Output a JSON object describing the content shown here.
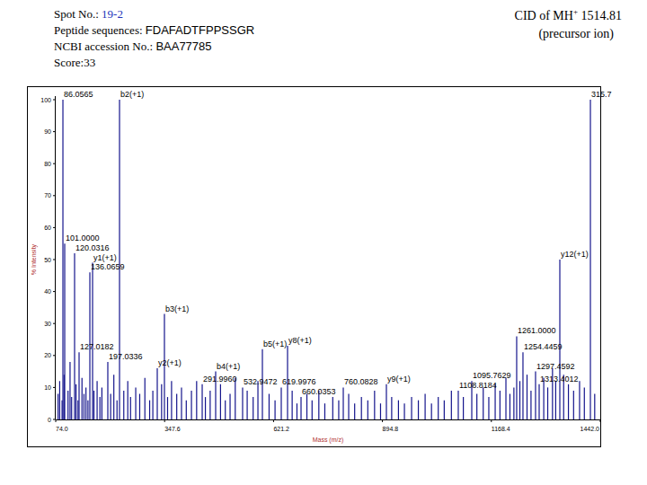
{
  "header": {
    "spot": {
      "label": "Spot No.:",
      "value": "19-2"
    },
    "peptide": {
      "label": "Peptide sequences:",
      "value": "FDAFADTFPPSSGR"
    },
    "accession": {
      "label": "NCBI accession No.:",
      "value": "BAA77785"
    },
    "score": "Score:33",
    "cid": {
      "prefix": "CID of MH",
      "charge": "+",
      "mass": "1514.81"
    },
    "precursor": "(precursor ion)"
  },
  "chart_data": {
    "type": "stem",
    "x_label": "Mass (m/z)",
    "y_label": "% Intensity",
    "color": "#14148c",
    "grid": false,
    "xlim": [
      74.0,
      1442.0
    ],
    "xticks": [
      {
        "value": 74.0,
        "label": "74.0"
      },
      347.6,
      621.2,
      894.8,
      1168.4,
      {
        "value": 1442.0,
        "label": "1442.0"
      }
    ],
    "ylim": [
      0,
      100
    ],
    "yticks": [
      0,
      10,
      20,
      30,
      40,
      50,
      60,
      70,
      80,
      90,
      100
    ],
    "x": [
      92.1,
      96.6,
      121.4,
      166.6,
      159.8,
      132.7,
      204.9,
      234.3,
      329.1,
      347.1,
      442.0,
      475.8,
      543.5,
      593.2,
      656.4,
      640.6,
      690.3,
      796.4,
      904.7,
      1085.3,
      1119.2,
      1232.0,
      1247.8,
      1279.4,
      1288.5,
      1340.4,
      1417.2,
      80,
      84,
      90,
      95,
      105,
      110,
      114,
      125,
      130,
      140,
      145,
      150,
      155,
      170,
      178,
      185,
      190,
      212,
      220,
      228,
      245,
      255,
      262,
      275,
      285,
      298,
      310,
      318,
      340,
      355,
      365,
      378,
      390,
      402,
      415,
      428,
      450,
      462,
      488,
      500,
      512,
      525,
      555,
      570,
      582,
      610,
      625,
      668,
      680,
      705,
      718,
      735,
      750,
      770,
      785,
      810,
      825,
      842,
      858,
      875,
      890,
      918,
      935,
      950,
      968,
      985,
      1002,
      1018,
      1035,
      1050,
      1068,
      1098,
      1132,
      1148,
      1162,
      1178,
      1190,
      1205,
      1215,
      1225,
      1240,
      1258,
      1268,
      1300,
      1310,
      1322,
      1330,
      1350,
      1362,
      1375,
      1390,
      1402,
      1428
    ],
    "values": [
      100,
      55,
      52,
      49,
      46,
      21,
      18,
      100,
      16,
      33,
      11,
      15,
      10,
      22,
      23,
      10,
      7,
      10,
      11,
      9,
      12,
      26,
      21,
      15,
      11,
      50,
      100,
      8,
      12,
      6,
      14,
      9,
      18,
      7,
      11,
      6,
      13,
      8,
      10,
      6,
      9,
      12,
      7,
      10,
      8,
      14,
      6,
      9,
      12,
      7,
      10,
      8,
      13,
      6,
      9,
      11,
      7,
      12,
      8,
      10,
      6,
      9,
      12,
      7,
      9,
      11,
      6,
      8,
      13,
      9,
      7,
      12,
      8,
      6,
      9,
      5,
      8,
      6,
      9,
      5,
      7,
      6,
      8,
      5,
      7,
      6,
      9,
      5,
      7,
      6,
      5,
      7,
      6,
      8,
      5,
      7,
      6,
      9,
      7,
      8,
      10,
      7,
      11,
      9,
      13,
      8,
      10,
      12,
      14,
      9,
      13,
      10,
      16,
      12,
      14,
      11,
      9,
      12,
      10,
      8
    ],
    "labels": [
      "86.0565",
      "101.0000",
      "120.0316",
      "y1(+1)",
      "136.0659",
      "127.0182",
      "197.0336",
      "b2(+1)",
      "y2(+1)",
      "b3(+1)",
      "291.9960",
      "b4(+1)",
      "532.9472",
      "b5(+1)",
      "y8(+1)",
      "619.9976",
      "660.0353",
      "760.0828",
      "y9(+1)",
      "1108.8184",
      "1095.7629",
      "1261.0000",
      "1254.4459",
      "1297.4592",
      "1313.4012",
      "y12(+1)",
      "315.7",
      null,
      null,
      null,
      null,
      null,
      null,
      null,
      null,
      null,
      null,
      null,
      null,
      null,
      null,
      null,
      null,
      null,
      null,
      null,
      null,
      null,
      null,
      null,
      null,
      null,
      null,
      null,
      null,
      null,
      null,
      null,
      null,
      null,
      null,
      null,
      null,
      null,
      null,
      null,
      null,
      null,
      null,
      null,
      null,
      null,
      null,
      null,
      null,
      null,
      null,
      null,
      null,
      null,
      null,
      null,
      null,
      null,
      null,
      null,
      null,
      null,
      null,
      null,
      null,
      null,
      null,
      null,
      null,
      null,
      null,
      null,
      null,
      null,
      null,
      null,
      null,
      null,
      null,
      null,
      null,
      null,
      null,
      null,
      null,
      null,
      null,
      null,
      null,
      null,
      null,
      null,
      null
    ]
  }
}
